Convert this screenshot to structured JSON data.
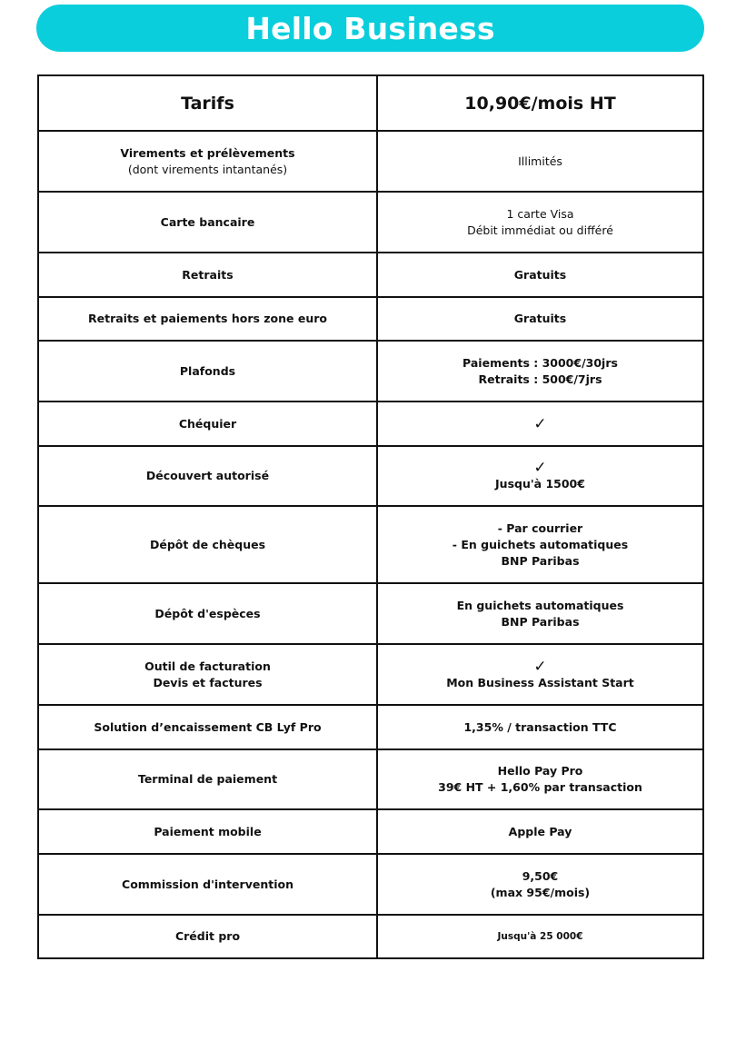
{
  "title": "Hello Business",
  "header": {
    "label": "Tarifs",
    "value": "10,90€/mois HT"
  },
  "rows": [
    {
      "label": [
        {
          "text": "Virements et prélèvements",
          "bold": true
        },
        {
          "text": "(dont virements intantanés)",
          "bold": false
        }
      ],
      "check": false,
      "value": [
        {
          "text": "Illimités",
          "bold": false
        }
      ]
    },
    {
      "label": [
        {
          "text": "Carte bancaire",
          "bold": true
        }
      ],
      "check": false,
      "value": [
        {
          "text": "1 carte Visa",
          "bold": false
        },
        {
          "text": "Débit immédiat ou différé",
          "bold": false
        }
      ]
    },
    {
      "label": [
        {
          "text": "Retraits",
          "bold": true
        }
      ],
      "check": false,
      "value": [
        {
          "text": "Gratuits",
          "bold": true
        }
      ]
    },
    {
      "label": [
        {
          "text": "Retraits et paiements hors zone euro",
          "bold": true
        }
      ],
      "check": false,
      "value": [
        {
          "text": "Gratuits",
          "bold": true
        }
      ]
    },
    {
      "label": [
        {
          "text": "Plafonds",
          "bold": true
        }
      ],
      "check": false,
      "value": [
        {
          "text": "Paiements : 3000€/30jrs",
          "bold": true
        },
        {
          "text": "Retraits : 500€/7jrs",
          "bold": true
        }
      ]
    },
    {
      "label": [
        {
          "text": "Chéquier",
          "bold": true
        }
      ],
      "check": true,
      "value": []
    },
    {
      "label": [
        {
          "text": "Découvert autorisé",
          "bold": true
        }
      ],
      "check": true,
      "value": [
        {
          "text": "Jusqu'à 1500€",
          "bold": true
        }
      ]
    },
    {
      "label": [
        {
          "text": "Dépôt de chèques",
          "bold": true
        }
      ],
      "check": false,
      "value": [
        {
          "text": "- Par courrier",
          "bold": true
        },
        {
          "text": "- En guichets automatiques",
          "bold": true
        },
        {
          "text": "BNP Paribas",
          "bold": true
        }
      ]
    },
    {
      "label": [
        {
          "text": "Dépôt d'espèces",
          "bold": true
        }
      ],
      "check": false,
      "value": [
        {
          "text": "En guichets automatiques",
          "bold": true
        },
        {
          "text": "BNP Paribas",
          "bold": true
        }
      ]
    },
    {
      "label": [
        {
          "text": "Outil de facturation",
          "bold": true
        },
        {
          "text": "Devis et factures",
          "bold": true
        }
      ],
      "check": true,
      "value": [
        {
          "text": "Mon Business Assistant Start",
          "bold": true
        }
      ]
    },
    {
      "label": [
        {
          "text": "Solution d’encaissement CB Lyf Pro",
          "bold": true
        }
      ],
      "check": false,
      "value": [
        {
          "text": "1,35% / transaction TTC",
          "bold": true
        }
      ]
    },
    {
      "label": [
        {
          "text": "Terminal de paiement",
          "bold": true
        }
      ],
      "check": false,
      "value": [
        {
          "text": "Hello Pay Pro",
          "bold": true
        },
        {
          "text": "39€ HT + 1,60% par transaction",
          "bold": true
        }
      ]
    },
    {
      "label": [
        {
          "text": "Paiement mobile",
          "bold": true
        }
      ],
      "check": false,
      "value": [
        {
          "text": "Apple Pay",
          "bold": true
        }
      ]
    },
    {
      "label": [
        {
          "text": "Commission d'intervention",
          "bold": true
        }
      ],
      "check": false,
      "value": [
        {
          "text": "9,50€",
          "bold": true
        },
        {
          "text": "(max 95€/mois)",
          "bold": true
        }
      ]
    },
    {
      "label": [
        {
          "text": "Crédit pro",
          "bold": true
        }
      ],
      "check": false,
      "value": [
        {
          "text": "Jusqu'à 25 000€",
          "bold": true,
          "small": true
        }
      ]
    }
  ],
  "icons": {
    "check": "checkmark-icon"
  },
  "colors": {
    "banner": "#0bcedc",
    "border": "#111111"
  }
}
